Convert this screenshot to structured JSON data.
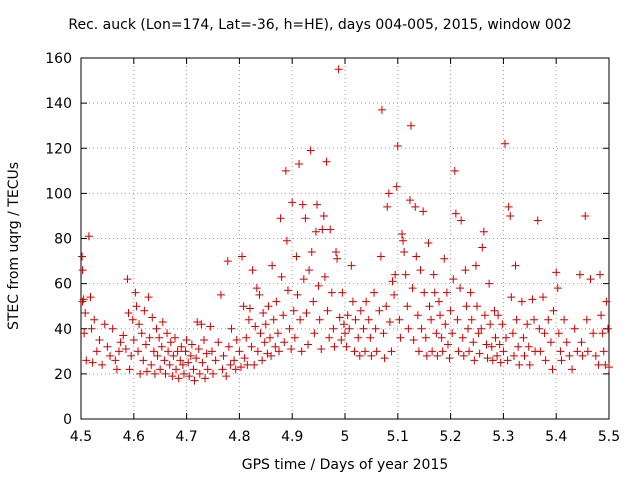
{
  "chart_data": {
    "type": "scatter",
    "title": "Rec. auck (Lon=174, Lat=-36, h=HE), days 004-005, 2015, window 002",
    "xlabel": "GPS time / Days of year 2015",
    "ylabel": "STEC from uqrg / TECUs",
    "xlim": [
      4.5,
      5.5
    ],
    "ylim": [
      0,
      160
    ],
    "xticks": [
      4.5,
      4.6,
      4.7,
      4.8,
      4.9,
      5.0,
      5.1,
      5.2,
      5.3,
      5.4,
      5.5
    ],
    "xtick_labels": [
      "4.5",
      "4.6",
      "4.7",
      "4.8",
      "4.9",
      "5",
      "5.1",
      "5.2",
      "5.3",
      "5.4",
      "5.5"
    ],
    "yticks": [
      0,
      20,
      40,
      60,
      80,
      100,
      120,
      140,
      160
    ],
    "ytick_labels": [
      "0",
      "20",
      "40",
      "60",
      "80",
      "100",
      "120",
      "140",
      "160"
    ],
    "grid": true,
    "marker": "+",
    "color": "#cc0000",
    "points": [
      [
        4.502,
        72
      ],
      [
        4.503,
        66
      ],
      [
        4.503,
        52
      ],
      [
        4.505,
        53
      ],
      [
        4.508,
        47
      ],
      [
        4.506,
        38
      ],
      [
        4.51,
        26
      ],
      [
        4.515,
        81
      ],
      [
        4.518,
        54
      ],
      [
        4.52,
        40
      ],
      [
        4.525,
        44
      ],
      [
        4.522,
        25
      ],
      [
        4.53,
        30
      ],
      [
        4.535,
        35
      ],
      [
        4.54,
        24
      ],
      [
        4.545,
        42
      ],
      [
        4.55,
        32
      ],
      [
        4.555,
        28
      ],
      [
        4.56,
        40
      ],
      [
        4.565,
        26
      ],
      [
        4.568,
        22
      ],
      [
        4.572,
        30
      ],
      [
        4.575,
        34
      ],
      [
        4.58,
        37
      ],
      [
        4.585,
        31
      ],
      [
        4.588,
        62
      ],
      [
        4.59,
        47
      ],
      [
        4.592,
        22
      ],
      [
        4.595,
        28
      ],
      [
        4.598,
        44
      ],
      [
        4.6,
        35
      ],
      [
        4.603,
        56
      ],
      [
        4.605,
        50
      ],
      [
        4.608,
        30
      ],
      [
        4.61,
        42
      ],
      [
        4.612,
        20
      ],
      [
        4.615,
        38
      ],
      [
        4.618,
        26
      ],
      [
        4.62,
        48
      ],
      [
        4.623,
        33
      ],
      [
        4.625,
        21
      ],
      [
        4.628,
        54
      ],
      [
        4.63,
        36
      ],
      [
        4.633,
        24
      ],
      [
        4.635,
        45
      ],
      [
        4.638,
        30
      ],
      [
        4.64,
        20
      ],
      [
        4.643,
        40
      ],
      [
        4.645,
        28
      ],
      [
        4.648,
        36
      ],
      [
        4.65,
        22
      ],
      [
        4.653,
        32
      ],
      [
        4.655,
        43
      ],
      [
        4.658,
        26
      ],
      [
        4.66,
        20
      ],
      [
        4.663,
        38
      ],
      [
        4.665,
        30
      ],
      [
        4.668,
        24
      ],
      [
        4.67,
        34
      ],
      [
        4.673,
        19
      ],
      [
        4.675,
        28
      ],
      [
        4.678,
        36
      ],
      [
        4.68,
        22
      ],
      [
        4.683,
        30
      ],
      [
        4.685,
        18
      ],
      [
        4.688,
        26
      ],
      [
        4.69,
        32
      ],
      [
        4.693,
        24
      ],
      [
        4.695,
        20
      ],
      [
        4.698,
        30
      ],
      [
        4.7,
        35
      ],
      [
        4.703,
        25
      ],
      [
        4.705,
        19
      ],
      [
        4.708,
        28
      ],
      [
        4.71,
        33
      ],
      [
        4.713,
        22
      ],
      [
        4.715,
        17
      ],
      [
        4.718,
        27
      ],
      [
        4.72,
        43
      ],
      [
        4.723,
        31
      ],
      [
        4.725,
        20
      ],
      [
        4.728,
        42
      ],
      [
        4.73,
        25
      ],
      [
        4.733,
        35
      ],
      [
        4.735,
        18
      ],
      [
        4.738,
        29
      ],
      [
        4.74,
        22
      ],
      [
        4.745,
        41
      ],
      [
        4.748,
        30
      ],
      [
        4.75,
        20
      ],
      [
        4.755,
        26
      ],
      [
        4.76,
        34
      ],
      [
        4.765,
        55
      ],
      [
        4.768,
        22
      ],
      [
        4.77,
        28
      ],
      [
        4.775,
        19
      ],
      [
        4.778,
        70
      ],
      [
        4.78,
        32
      ],
      [
        4.783,
        24
      ],
      [
        4.785,
        40
      ],
      [
        4.79,
        26
      ],
      [
        4.793,
        22
      ],
      [
        4.795,
        35
      ],
      [
        4.8,
        30
      ],
      [
        4.803,
        23
      ],
      [
        4.805,
        72
      ],
      [
        4.808,
        50
      ],
      [
        4.81,
        27
      ],
      [
        4.813,
        36
      ],
      [
        4.815,
        24
      ],
      [
        4.818,
        44
      ],
      [
        4.82,
        49
      ],
      [
        4.823,
        32
      ],
      [
        4.825,
        66
      ],
      [
        4.828,
        24
      ],
      [
        4.83,
        41
      ],
      [
        4.833,
        58
      ],
      [
        4.835,
        30
      ],
      [
        4.838,
        55
      ],
      [
        4.84,
        38
      ],
      [
        4.843,
        26
      ],
      [
        4.845,
        47
      ],
      [
        4.848,
        34
      ],
      [
        4.85,
        42
      ],
      [
        4.853,
        29
      ],
      [
        4.855,
        50
      ],
      [
        4.858,
        36
      ],
      [
        4.86,
        28
      ],
      [
        4.862,
        68
      ],
      [
        4.865,
        44
      ],
      [
        4.868,
        32
      ],
      [
        4.87,
        52
      ],
      [
        4.873,
        38
      ],
      [
        4.875,
        30
      ],
      [
        4.878,
        89
      ],
      [
        4.88,
        63
      ],
      [
        4.883,
        46
      ],
      [
        4.885,
        34
      ],
      [
        4.888,
        110
      ],
      [
        4.89,
        79
      ],
      [
        4.892,
        57
      ],
      [
        4.895,
        40
      ],
      [
        4.898,
        31
      ],
      [
        4.9,
        96
      ],
      [
        4.903,
        48
      ],
      [
        4.905,
        36
      ],
      [
        4.908,
        72
      ],
      [
        4.91,
        55
      ],
      [
        4.913,
        113
      ],
      [
        4.915,
        44
      ],
      [
        4.918,
        30
      ],
      [
        4.92,
        95
      ],
      [
        4.922,
        62
      ],
      [
        4.925,
        89
      ],
      [
        4.927,
        47
      ],
      [
        4.93,
        33
      ],
      [
        4.932,
        66
      ],
      [
        4.935,
        119
      ],
      [
        4.937,
        74
      ],
      [
        4.94,
        52
      ],
      [
        4.942,
        38
      ],
      [
        4.945,
        83
      ],
      [
        4.947,
        95
      ],
      [
        4.95,
        59
      ],
      [
        4.952,
        44
      ],
      [
        4.955,
        31
      ],
      [
        4.957,
        84
      ],
      [
        4.96,
        90
      ],
      [
        4.962,
        63
      ],
      [
        4.965,
        114
      ],
      [
        4.967,
        48
      ],
      [
        4.97,
        36
      ],
      [
        4.972,
        84
      ],
      [
        4.975,
        56
      ],
      [
        4.978,
        40
      ],
      [
        4.98,
        32
      ],
      [
        4.983,
        74
      ],
      [
        4.985,
        71
      ],
      [
        4.988,
        155
      ],
      [
        4.99,
        45
      ],
      [
        4.993,
        35
      ],
      [
        4.995,
        56
      ],
      [
        4.998,
        42
      ],
      [
        5.0,
        38
      ],
      [
        5.003,
        32
      ],
      [
        5.005,
        46
      ],
      [
        5.008,
        40
      ],
      [
        5.012,
        68
      ],
      [
        5.015,
        52
      ],
      [
        5.018,
        30
      ],
      [
        5.02,
        44
      ],
      [
        5.025,
        36
      ],
      [
        5.028,
        28
      ],
      [
        5.03,
        48
      ],
      [
        5.035,
        40
      ],
      [
        5.038,
        30
      ],
      [
        5.04,
        52
      ],
      [
        5.045,
        44
      ],
      [
        5.048,
        36
      ],
      [
        5.05,
        28
      ],
      [
        5.055,
        56
      ],
      [
        5.058,
        40
      ],
      [
        5.06,
        30
      ],
      [
        5.065,
        48
      ],
      [
        5.068,
        72
      ],
      [
        5.07,
        137
      ],
      [
        5.073,
        38
      ],
      [
        5.075,
        27
      ],
      [
        5.078,
        50
      ],
      [
        5.08,
        94
      ],
      [
        5.083,
        100
      ],
      [
        5.085,
        43
      ],
      [
        5.088,
        30
      ],
      [
        5.09,
        61
      ],
      [
        5.093,
        55
      ],
      [
        5.095,
        64
      ],
      [
        5.098,
        103
      ],
      [
        5.1,
        121
      ],
      [
        5.103,
        44
      ],
      [
        5.105,
        36
      ],
      [
        5.108,
        82
      ],
      [
        5.11,
        79
      ],
      [
        5.112,
        74
      ],
      [
        5.115,
        64
      ],
      [
        5.118,
        50
      ],
      [
        5.12,
        40
      ],
      [
        5.123,
        97
      ],
      [
        5.125,
        130
      ],
      [
        5.128,
        58
      ],
      [
        5.13,
        35
      ],
      [
        5.133,
        94
      ],
      [
        5.135,
        72
      ],
      [
        5.138,
        46
      ],
      [
        5.14,
        30
      ],
      [
        5.143,
        66
      ],
      [
        5.145,
        40
      ],
      [
        5.148,
        92
      ],
      [
        5.15,
        56
      ],
      [
        5.153,
        36
      ],
      [
        5.155,
        28
      ],
      [
        5.158,
        78
      ],
      [
        5.16,
        50
      ],
      [
        5.163,
        44
      ],
      [
        5.165,
        30
      ],
      [
        5.168,
        64
      ],
      [
        5.17,
        56
      ],
      [
        5.173,
        38
      ],
      [
        5.175,
        28
      ],
      [
        5.178,
        52
      ],
      [
        5.18,
        46
      ],
      [
        5.183,
        36
      ],
      [
        5.185,
        30
      ],
      [
        5.188,
        71
      ],
      [
        5.19,
        42
      ],
      [
        5.193,
        56
      ],
      [
        5.195,
        33
      ],
      [
        5.198,
        27
      ],
      [
        5.2,
        48
      ],
      [
        5.203,
        38
      ],
      [
        5.205,
        62
      ],
      [
        5.208,
        110
      ],
      [
        5.21,
        91
      ],
      [
        5.213,
        44
      ],
      [
        5.215,
        30
      ],
      [
        5.218,
        58
      ],
      [
        5.22,
        88
      ],
      [
        5.223,
        36
      ],
      [
        5.225,
        28
      ],
      [
        5.228,
        66
      ],
      [
        5.23,
        50
      ],
      [
        5.233,
        40
      ],
      [
        5.235,
        30
      ],
      [
        5.238,
        56
      ],
      [
        5.24,
        44
      ],
      [
        5.243,
        34
      ],
      [
        5.245,
        26
      ],
      [
        5.248,
        68
      ],
      [
        5.25,
        50
      ],
      [
        5.253,
        38
      ],
      [
        5.255,
        29
      ],
      [
        5.258,
        40
      ],
      [
        5.26,
        76
      ],
      [
        5.263,
        83
      ],
      [
        5.265,
        46
      ],
      [
        5.268,
        33
      ],
      [
        5.27,
        27
      ],
      [
        5.273,
        60
      ],
      [
        5.275,
        42
      ],
      [
        5.278,
        32
      ],
      [
        5.28,
        26
      ],
      [
        5.283,
        48
      ],
      [
        5.285,
        36
      ],
      [
        5.288,
        28
      ],
      [
        5.29,
        46
      ],
      [
        5.293,
        33
      ],
      [
        5.295,
        25
      ],
      [
        5.298,
        42
      ],
      [
        5.3,
        30
      ],
      [
        5.303,
        122
      ],
      [
        5.305,
        36
      ],
      [
        5.308,
        26
      ],
      [
        5.31,
        94
      ],
      [
        5.313,
        90
      ],
      [
        5.315,
        54
      ],
      [
        5.318,
        38
      ],
      [
        5.32,
        28
      ],
      [
        5.323,
        68
      ],
      [
        5.325,
        44
      ],
      [
        5.328,
        32
      ],
      [
        5.33,
        24
      ],
      [
        5.335,
        52
      ],
      [
        5.338,
        36
      ],
      [
        5.34,
        28
      ],
      [
        5.345,
        42
      ],
      [
        5.348,
        32
      ],
      [
        5.35,
        24
      ],
      [
        5.355,
        53
      ],
      [
        5.358,
        44
      ],
      [
        5.36,
        30
      ],
      [
        5.365,
        88
      ],
      [
        5.368,
        40
      ],
      [
        5.37,
        30
      ],
      [
        5.375,
        54
      ],
      [
        5.378,
        38
      ],
      [
        5.38,
        26
      ],
      [
        5.385,
        44
      ],
      [
        5.39,
        34
      ],
      [
        5.393,
        22
      ],
      [
        5.395,
        48
      ],
      [
        5.4,
        65
      ],
      [
        5.403,
        58
      ],
      [
        5.405,
        38
      ],
      [
        5.408,
        30
      ],
      [
        5.41,
        26
      ],
      [
        5.415,
        44
      ],
      [
        5.42,
        34
      ],
      [
        5.425,
        28
      ],
      [
        5.43,
        22
      ],
      [
        5.435,
        40
      ],
      [
        5.44,
        30
      ],
      [
        5.445,
        64
      ],
      [
        5.448,
        34
      ],
      [
        5.45,
        28
      ],
      [
        5.455,
        90
      ],
      [
        5.458,
        44
      ],
      [
        5.46,
        30
      ],
      [
        5.465,
        62
      ],
      [
        5.47,
        38
      ],
      [
        5.475,
        28
      ],
      [
        5.48,
        24
      ],
      [
        5.483,
        64
      ],
      [
        5.485,
        46
      ],
      [
        5.488,
        38
      ],
      [
        5.49,
        30
      ],
      [
        5.493,
        24
      ],
      [
        5.495,
        52
      ],
      [
        5.498,
        40
      ],
      [
        5.5,
        23
      ]
    ]
  }
}
